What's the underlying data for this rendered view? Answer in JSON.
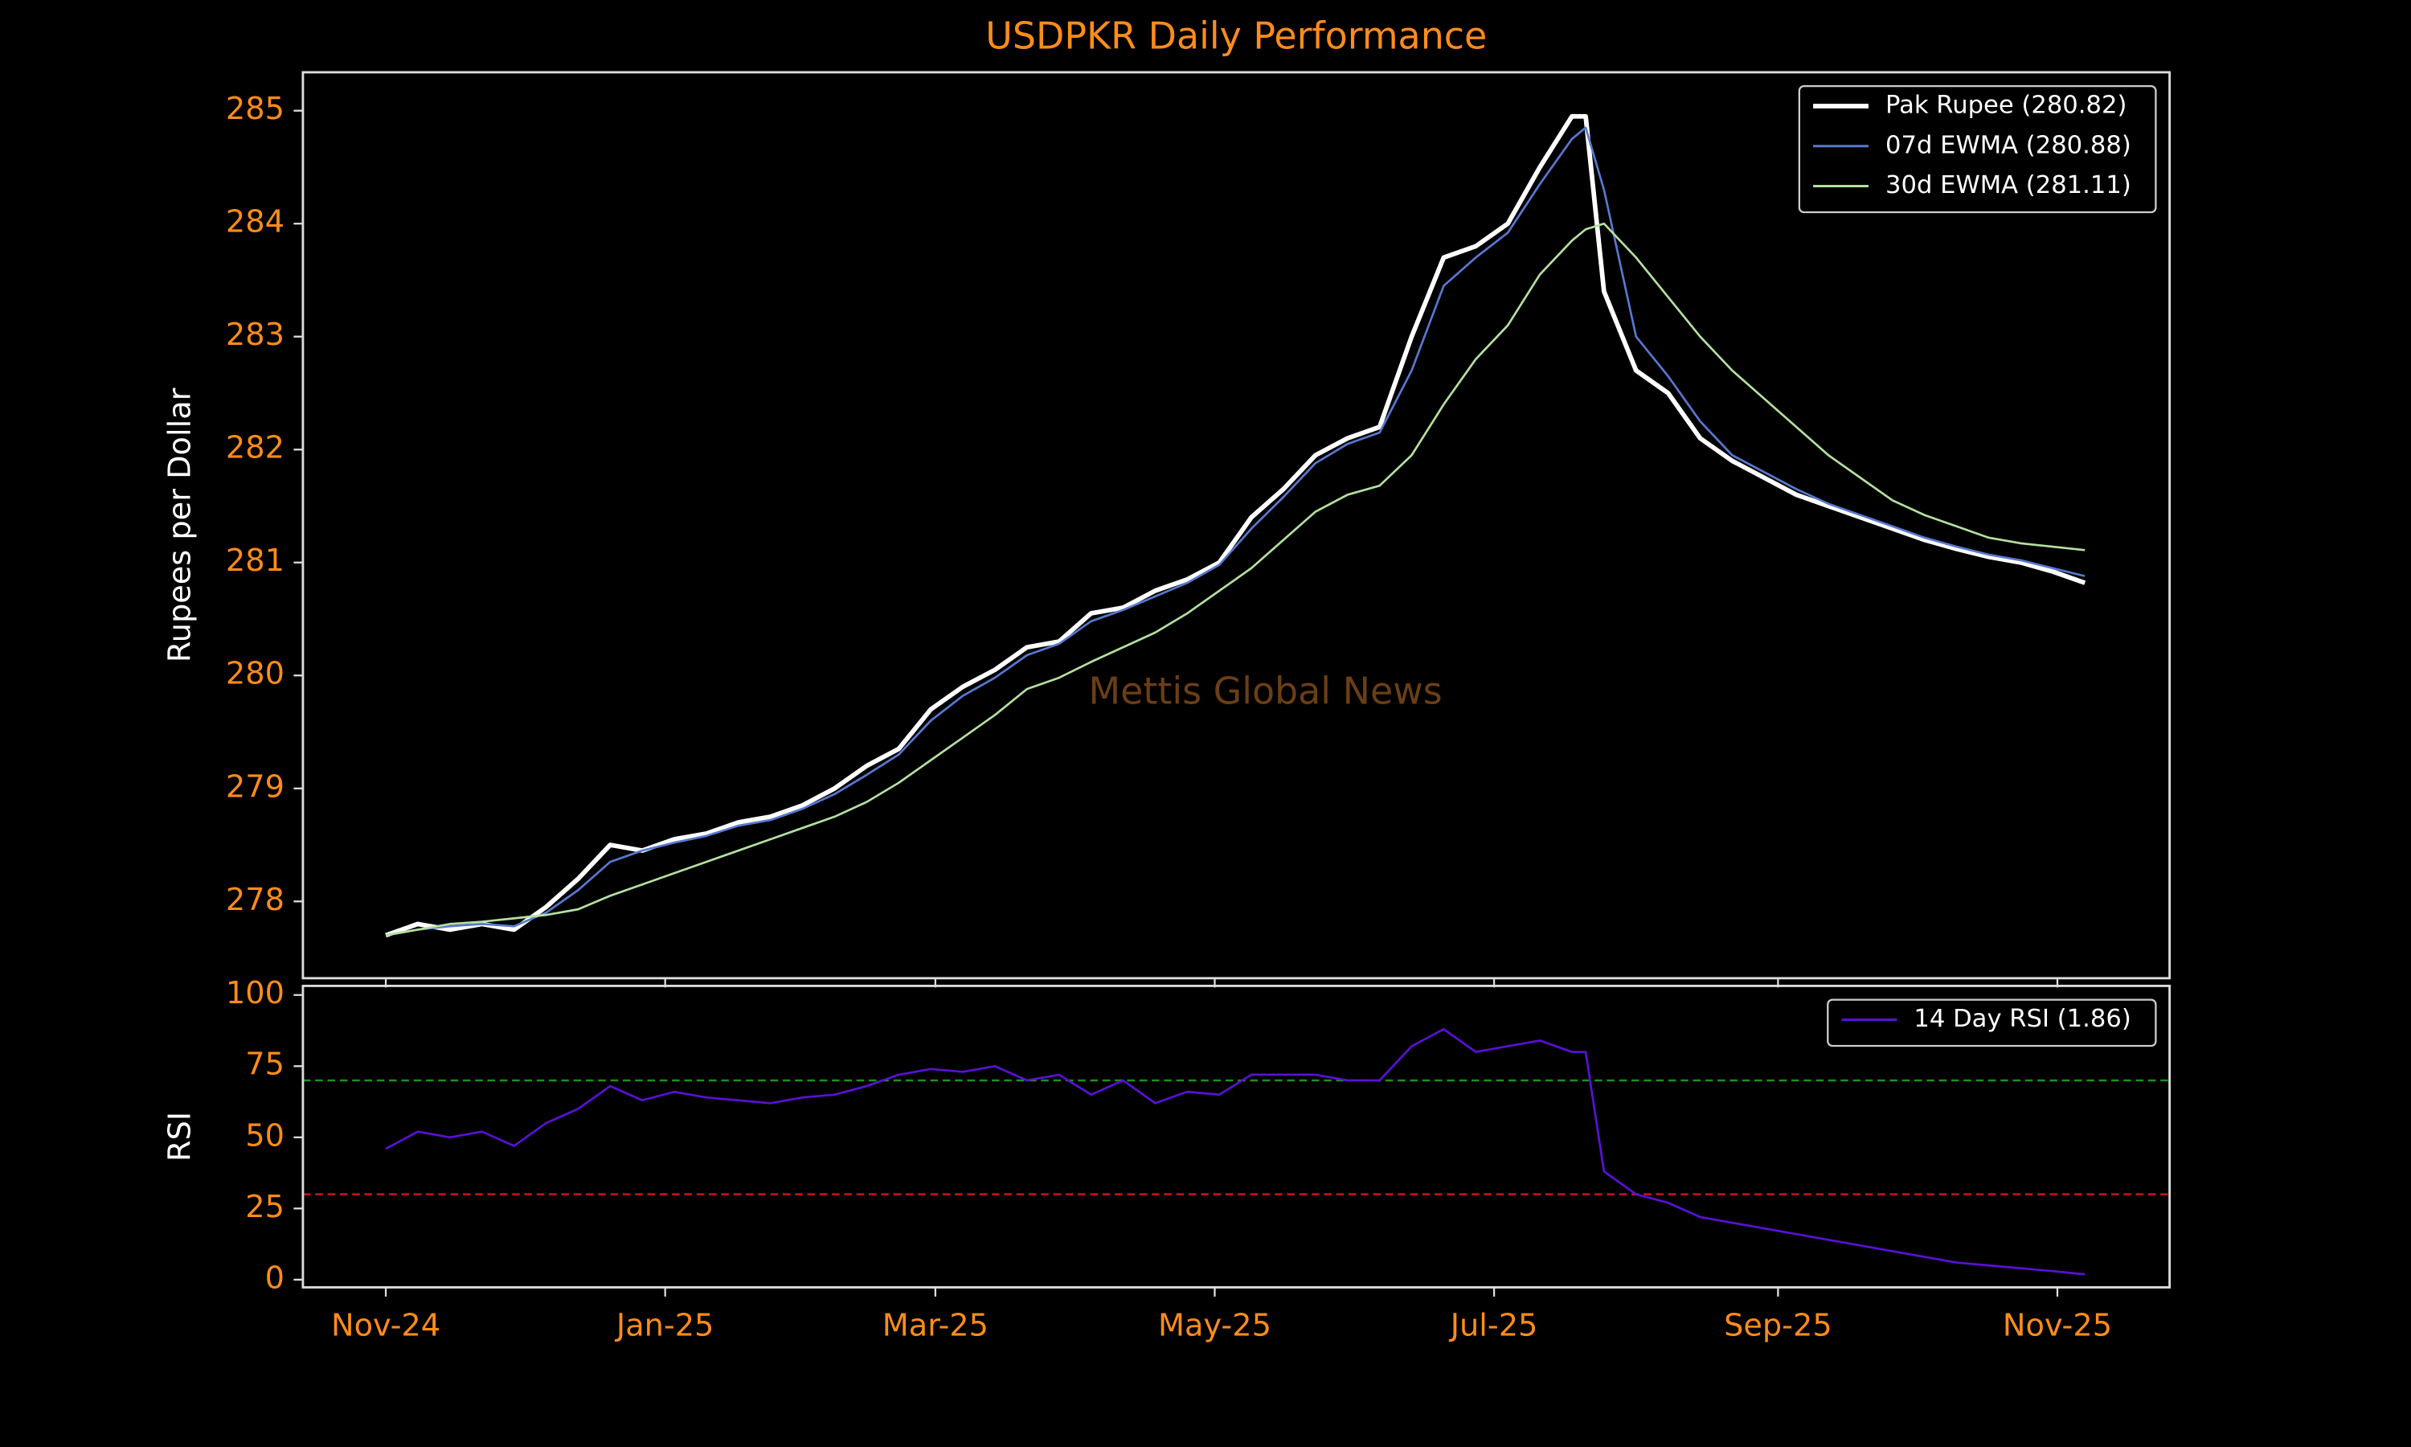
{
  "chart_data": [
    {
      "type": "line",
      "title": "USDPKR Daily Performance",
      "ylabel": "Rupees per Dollar",
      "annotation": "Mettis Global News",
      "x": [
        0,
        7,
        14,
        21,
        28,
        35,
        42,
        49,
        56,
        63,
        70,
        77,
        84,
        91,
        98,
        105,
        112,
        119,
        126,
        133,
        140,
        147,
        154,
        161,
        168,
        175,
        182,
        189,
        196,
        203,
        210,
        217,
        224,
        231,
        238,
        245,
        252,
        259,
        262,
        266,
        273,
        280,
        287,
        294,
        301,
        308,
        315,
        322,
        329,
        336,
        343,
        350,
        357,
        364,
        371
      ],
      "series": [
        {
          "name": "Pak Rupee (280.82)",
          "color": "#ffffff",
          "values": [
            277.7,
            277.8,
            277.75,
            277.8,
            277.75,
            277.95,
            278.2,
            278.5,
            278.45,
            278.55,
            278.6,
            278.7,
            278.75,
            278.85,
            279.0,
            279.2,
            279.35,
            279.7,
            279.9,
            280.05,
            280.25,
            280.3,
            280.55,
            280.6,
            280.75,
            280.85,
            281.0,
            281.4,
            281.65,
            281.95,
            282.1,
            282.2,
            283.0,
            283.7,
            283.8,
            284.0,
            284.5,
            284.95,
            284.95,
            283.4,
            282.7,
            282.5,
            282.1,
            281.9,
            281.75,
            281.6,
            281.5,
            281.4,
            281.3,
            281.2,
            281.12,
            281.05,
            281.0,
            280.92,
            280.82
          ]
        },
        {
          "name": "07d EWMA (280.88)",
          "color": "#5878d0",
          "values": [
            277.7,
            277.75,
            277.78,
            277.8,
            277.78,
            277.9,
            278.1,
            278.35,
            278.45,
            278.52,
            278.58,
            278.67,
            278.72,
            278.82,
            278.95,
            279.12,
            279.3,
            279.6,
            279.82,
            279.98,
            280.18,
            280.28,
            280.48,
            280.58,
            280.7,
            280.82,
            280.98,
            281.3,
            281.58,
            281.88,
            282.05,
            282.15,
            282.7,
            283.45,
            283.7,
            283.92,
            284.35,
            284.75,
            284.85,
            284.3,
            283.0,
            282.65,
            282.25,
            281.95,
            281.8,
            281.65,
            281.52,
            281.42,
            281.32,
            281.22,
            281.14,
            281.07,
            281.02,
            280.95,
            280.88
          ]
        },
        {
          "name": "30d EWMA (281.11)",
          "color": "#b4e0a0",
          "values": [
            277.7,
            277.75,
            277.8,
            277.82,
            277.85,
            277.88,
            277.93,
            278.05,
            278.15,
            278.25,
            278.35,
            278.45,
            278.55,
            278.65,
            278.75,
            278.88,
            279.05,
            279.25,
            279.45,
            279.65,
            279.88,
            279.98,
            280.12,
            280.25,
            280.38,
            280.55,
            280.75,
            280.95,
            281.2,
            281.45,
            281.6,
            281.68,
            281.95,
            282.4,
            282.8,
            283.1,
            283.55,
            283.85,
            283.95,
            284.0,
            283.7,
            283.35,
            283.0,
            282.7,
            282.45,
            282.2,
            281.95,
            281.75,
            281.55,
            281.42,
            281.32,
            281.22,
            281.17,
            281.14,
            281.11
          ]
        }
      ],
      "xlim": [
        -18.1,
        389.5
      ],
      "ylim": [
        277.32,
        285.34
      ],
      "yticks": [
        278,
        279,
        280,
        281,
        282,
        283,
        284,
        285
      ],
      "legend": "upper right",
      "grid": false
    },
    {
      "type": "line",
      "ylabel": "RSI",
      "x": [
        0,
        7,
        14,
        21,
        28,
        35,
        42,
        49,
        56,
        63,
        70,
        77,
        84,
        91,
        98,
        105,
        112,
        119,
        126,
        133,
        140,
        147,
        154,
        161,
        168,
        175,
        182,
        189,
        196,
        203,
        210,
        217,
        224,
        231,
        238,
        245,
        252,
        259,
        262,
        266,
        273,
        280,
        287,
        294,
        301,
        308,
        315,
        322,
        329,
        336,
        343,
        350,
        357,
        364,
        371
      ],
      "series": [
        {
          "name": "14 Day RSI (1.86)",
          "color": "#5a10d8",
          "values": [
            46,
            52,
            50,
            52,
            47,
            55,
            60,
            68,
            63,
            66,
            64,
            63,
            62,
            64,
            65,
            68,
            72,
            74,
            73,
            75,
            70,
            72,
            65,
            70,
            62,
            66,
            65,
            72,
            72,
            72,
            70,
            70,
            82,
            88,
            80,
            82,
            84,
            80,
            80,
            38,
            30,
            27,
            22,
            20,
            18,
            16,
            14,
            12,
            10,
            8,
            6,
            5,
            4,
            3,
            1.86
          ]
        }
      ],
      "hlines": [
        {
          "value": 70,
          "color": "#1f8f1f"
        },
        {
          "value": 30,
          "color": "#d01020"
        }
      ],
      "xlim": [
        -18.1,
        389.5
      ],
      "ylim": [
        -2.7,
        103.2
      ],
      "yticks": [
        0,
        25,
        50,
        75,
        100
      ],
      "xticks": [
        {
          "value": 0,
          "label": "Nov-24"
        },
        {
          "value": 61,
          "label": "Jan-25"
        },
        {
          "value": 120,
          "label": "Mar-25"
        },
        {
          "value": 181,
          "label": "May-25"
        },
        {
          "value": 242,
          "label": "Jul-25"
        },
        {
          "value": 304,
          "label": "Sep-25"
        },
        {
          "value": 365,
          "label": "Nov-25"
        }
      ],
      "legend": "upper right",
      "grid": false
    }
  ]
}
